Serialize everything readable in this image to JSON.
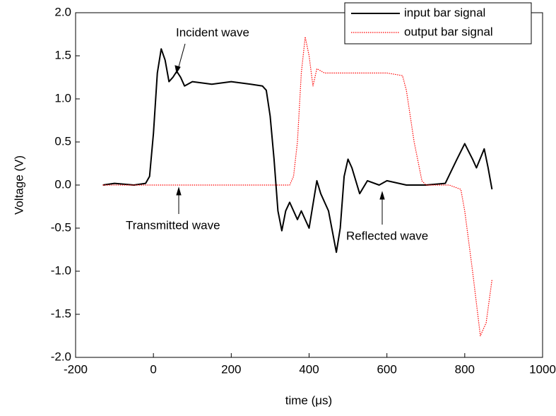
{
  "chart_data": {
    "type": "line",
    "xlabel": "time (μs)",
    "ylabel": "Voltage (V)",
    "xlim": [
      -200,
      1000
    ],
    "ylim": [
      -2,
      2
    ],
    "xticks": [
      -200,
      0,
      200,
      400,
      600,
      800,
      1000
    ],
    "yticks": [
      {
        "value": 2,
        "label": "2.0"
      },
      {
        "value": 1.5,
        "label": "1.5"
      },
      {
        "value": 1,
        "label": "1.0"
      },
      {
        "value": 0.5,
        "label": "0.5"
      },
      {
        "value": 0,
        "label": "0.0"
      },
      {
        "value": -0.5,
        "label": "-0.5"
      },
      {
        "value": -1,
        "label": "-1.0"
      },
      {
        "value": -1.5,
        "label": "-1.5"
      },
      {
        "value": -2,
        "label": "-2.0"
      }
    ],
    "legend": "top-right",
    "annotations": [
      "Incident wave",
      "Transmitted wave",
      "Reflected wave"
    ],
    "series": [
      {
        "name": "input bar signal",
        "color": "#000000",
        "style": "solid",
        "x": [
          -130,
          -100,
          -50,
          -20,
          -10,
          0,
          10,
          20,
          30,
          40,
          50,
          60,
          70,
          80,
          100,
          150,
          200,
          250,
          280,
          290,
          300,
          310,
          320,
          330,
          340,
          350,
          370,
          380,
          400,
          420,
          430,
          450,
          470,
          480,
          490,
          500,
          510,
          530,
          550,
          580,
          600,
          650,
          700,
          750,
          780,
          800,
          820,
          830,
          850,
          860,
          870
        ],
        "values": [
          0,
          0.02,
          0,
          0.02,
          0.1,
          0.6,
          1.3,
          1.58,
          1.45,
          1.2,
          1.25,
          1.32,
          1.25,
          1.15,
          1.2,
          1.17,
          1.2,
          1.17,
          1.15,
          1.1,
          0.8,
          0.3,
          -0.3,
          -0.53,
          -0.3,
          -0.2,
          -0.4,
          -0.3,
          -0.5,
          0.05,
          -0.1,
          -0.3,
          -0.78,
          -0.5,
          0.1,
          0.3,
          0.2,
          -0.1,
          0.05,
          0,
          0.05,
          0,
          0,
          0.02,
          0.3,
          0.48,
          0.3,
          0.2,
          0.42,
          0.2,
          -0.05
        ]
      },
      {
        "name": "output bar signal",
        "color": "#ff0000",
        "style": "dotted",
        "x": [
          -130,
          300,
          350,
          360,
          370,
          380,
          390,
          400,
          410,
          420,
          440,
          500,
          600,
          640,
          650,
          670,
          690,
          700,
          760,
          790,
          800,
          820,
          840,
          855,
          870
        ],
        "values": [
          0,
          0,
          0,
          0.1,
          0.5,
          1.3,
          1.72,
          1.5,
          1.15,
          1.35,
          1.3,
          1.3,
          1.3,
          1.27,
          1.1,
          0.5,
          0.05,
          0,
          0,
          -0.05,
          -0.3,
          -1,
          -1.75,
          -1.6,
          -1.1
        ]
      }
    ]
  }
}
